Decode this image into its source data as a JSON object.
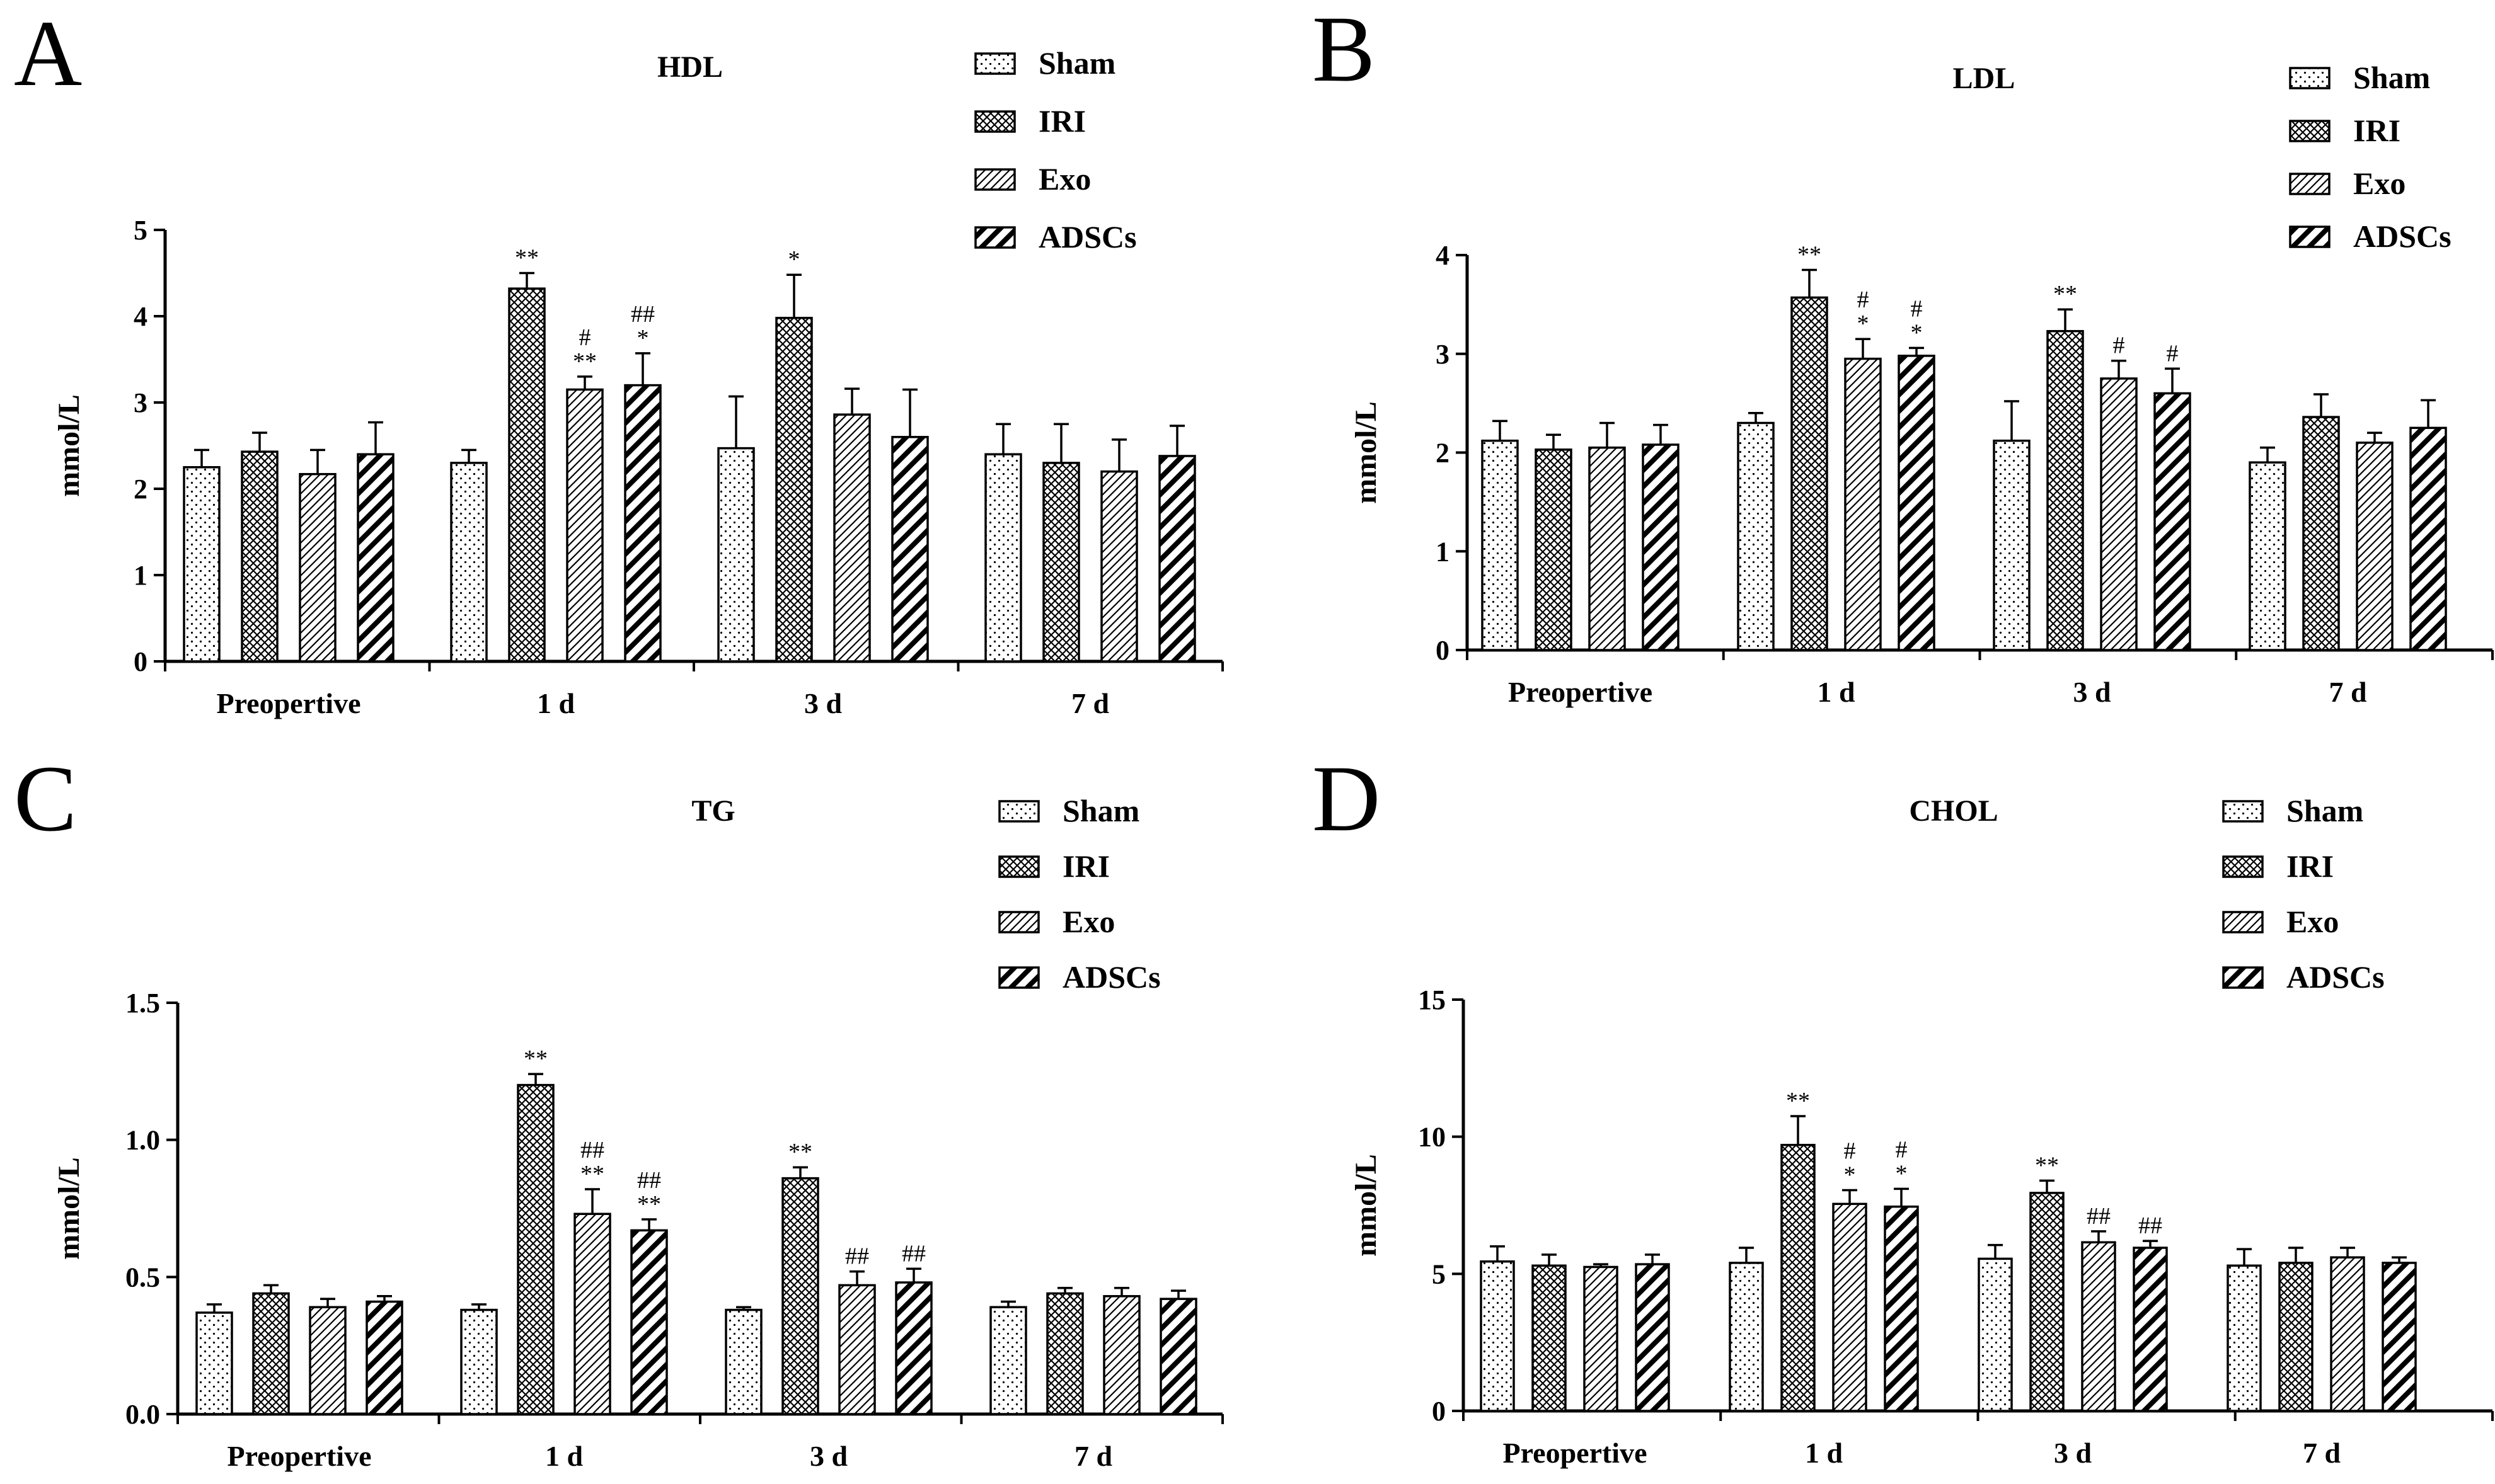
{
  "figure": {
    "groups": [
      {
        "name": "Sham",
        "pattern": "dots"
      },
      {
        "name": "IRI",
        "pattern": "crosshatch"
      },
      {
        "name": "Exo",
        "pattern": "diag-thin"
      },
      {
        "name": "ADSCs",
        "pattern": "diag-thick"
      }
    ],
    "colors": {
      "ink": "#000000",
      "background": "#ffffff"
    }
  },
  "chart_data": [
    {
      "panel": "A",
      "type": "bar",
      "title": "HDL",
      "ylabel": "mmol/L",
      "xlabel": "",
      "categories": [
        "Preopertive",
        "1 d",
        "3 d",
        "7 d"
      ],
      "ylim": [
        0,
        5
      ],
      "yticks": [
        "0",
        "1",
        "2",
        "3",
        "4",
        "5"
      ],
      "legend_position": "top-right",
      "series": [
        {
          "name": "Sham",
          "values": [
            2.25,
            2.3,
            2.47,
            2.4
          ],
          "errors": [
            0.2,
            0.15,
            0.6,
            0.35
          ],
          "annotations": [
            "",
            "",
            "",
            ""
          ]
        },
        {
          "name": "IRI",
          "values": [
            2.43,
            4.32,
            3.98,
            2.3
          ],
          "errors": [
            0.22,
            0.18,
            0.5,
            0.45
          ],
          "annotations": [
            "",
            "**",
            "*",
            ""
          ]
        },
        {
          "name": "Exo",
          "values": [
            2.17,
            3.15,
            2.86,
            2.2
          ],
          "errors": [
            0.28,
            0.15,
            0.3,
            0.37
          ],
          "annotations": [
            "",
            "#\n**",
            "",
            ""
          ]
        },
        {
          "name": "ADSCs",
          "values": [
            2.4,
            3.2,
            2.6,
            2.38
          ],
          "errors": [
            0.37,
            0.37,
            0.55,
            0.35
          ],
          "annotations": [
            "",
            "##\n*",
            "",
            ""
          ]
        }
      ]
    },
    {
      "panel": "B",
      "type": "bar",
      "title": "LDL",
      "ylabel": "mmol/L",
      "xlabel": "",
      "categories": [
        "Preopertive",
        "1 d",
        "3 d",
        "7 d"
      ],
      "ylim": [
        0,
        4
      ],
      "yticks": [
        "0",
        "1",
        "2",
        "3",
        "4"
      ],
      "legend_position": "top-right",
      "series": [
        {
          "name": "Sham",
          "values": [
            2.12,
            2.3,
            2.12,
            1.9
          ],
          "errors": [
            0.2,
            0.1,
            0.4,
            0.15
          ],
          "annotations": [
            "",
            "",
            "",
            ""
          ]
        },
        {
          "name": "IRI",
          "values": [
            2.03,
            3.57,
            3.23,
            2.36
          ],
          "errors": [
            0.15,
            0.28,
            0.22,
            0.23
          ],
          "annotations": [
            "",
            "**",
            "**",
            ""
          ]
        },
        {
          "name": "Exo",
          "values": [
            2.05,
            2.95,
            2.75,
            2.1
          ],
          "errors": [
            0.25,
            0.2,
            0.18,
            0.1
          ],
          "annotations": [
            "",
            "#\n*",
            "#",
            ""
          ]
        },
        {
          "name": "ADSCs",
          "values": [
            2.08,
            2.98,
            2.6,
            2.25
          ],
          "errors": [
            0.2,
            0.08,
            0.25,
            0.28
          ],
          "annotations": [
            "",
            "#\n*",
            "#",
            ""
          ]
        }
      ]
    },
    {
      "panel": "C",
      "type": "bar",
      "title": "TG",
      "ylabel": "mmol/L",
      "xlabel": "",
      "categories": [
        "Preopertive",
        "1 d",
        "3 d",
        "7 d"
      ],
      "ylim": [
        0,
        1.5
      ],
      "yticks": [
        "0.0",
        "0.5",
        "1.0",
        "1.5"
      ],
      "legend_position": "top-right",
      "series": [
        {
          "name": "Sham",
          "values": [
            0.37,
            0.38,
            0.38,
            0.39
          ],
          "errors": [
            0.03,
            0.02,
            0.01,
            0.02
          ],
          "annotations": [
            "",
            "",
            "",
            ""
          ]
        },
        {
          "name": "IRI",
          "values": [
            0.44,
            1.2,
            0.86,
            0.44
          ],
          "errors": [
            0.03,
            0.04,
            0.04,
            0.02
          ],
          "annotations": [
            "",
            "**",
            "**",
            ""
          ]
        },
        {
          "name": "Exo",
          "values": [
            0.39,
            0.73,
            0.47,
            0.43
          ],
          "errors": [
            0.03,
            0.09,
            0.05,
            0.03
          ],
          "annotations": [
            "",
            "##\n**",
            "##",
            ""
          ]
        },
        {
          "name": "ADSCs",
          "values": [
            0.41,
            0.67,
            0.48,
            0.42
          ],
          "errors": [
            0.02,
            0.04,
            0.05,
            0.03
          ],
          "annotations": [
            "",
            "##\n**",
            "##",
            ""
          ]
        }
      ]
    },
    {
      "panel": "D",
      "type": "bar",
      "title": "CHOL",
      "ylabel": "mmol/L",
      "xlabel": "",
      "categories": [
        "Preopertive",
        "1 d",
        "3 d",
        "7 d"
      ],
      "ylim": [
        0,
        15
      ],
      "yticks": [
        "0",
        "5",
        "10",
        "15"
      ],
      "legend_position": "top-right",
      "series": [
        {
          "name": "Sham",
          "values": [
            5.45,
            5.4,
            5.55,
            5.3
          ],
          "errors": [
            0.55,
            0.55,
            0.5,
            0.6
          ],
          "annotations": [
            "",
            "",
            "",
            ""
          ]
        },
        {
          "name": "IRI",
          "values": [
            5.3,
            9.7,
            7.95,
            5.4
          ],
          "errors": [
            0.4,
            1.05,
            0.45,
            0.55
          ],
          "annotations": [
            "",
            "**",
            "**",
            ""
          ]
        },
        {
          "name": "Exo",
          "values": [
            5.25,
            7.55,
            6.15,
            5.6
          ],
          "errors": [
            0.1,
            0.5,
            0.4,
            0.35
          ],
          "annotations": [
            "",
            "#\n*",
            "##",
            ""
          ]
        },
        {
          "name": "ADSCs",
          "values": [
            5.35,
            7.45,
            5.95,
            5.4
          ],
          "errors": [
            0.35,
            0.65,
            0.25,
            0.2
          ],
          "annotations": [
            "",
            "#\n*",
            "##",
            ""
          ]
        }
      ]
    }
  ]
}
